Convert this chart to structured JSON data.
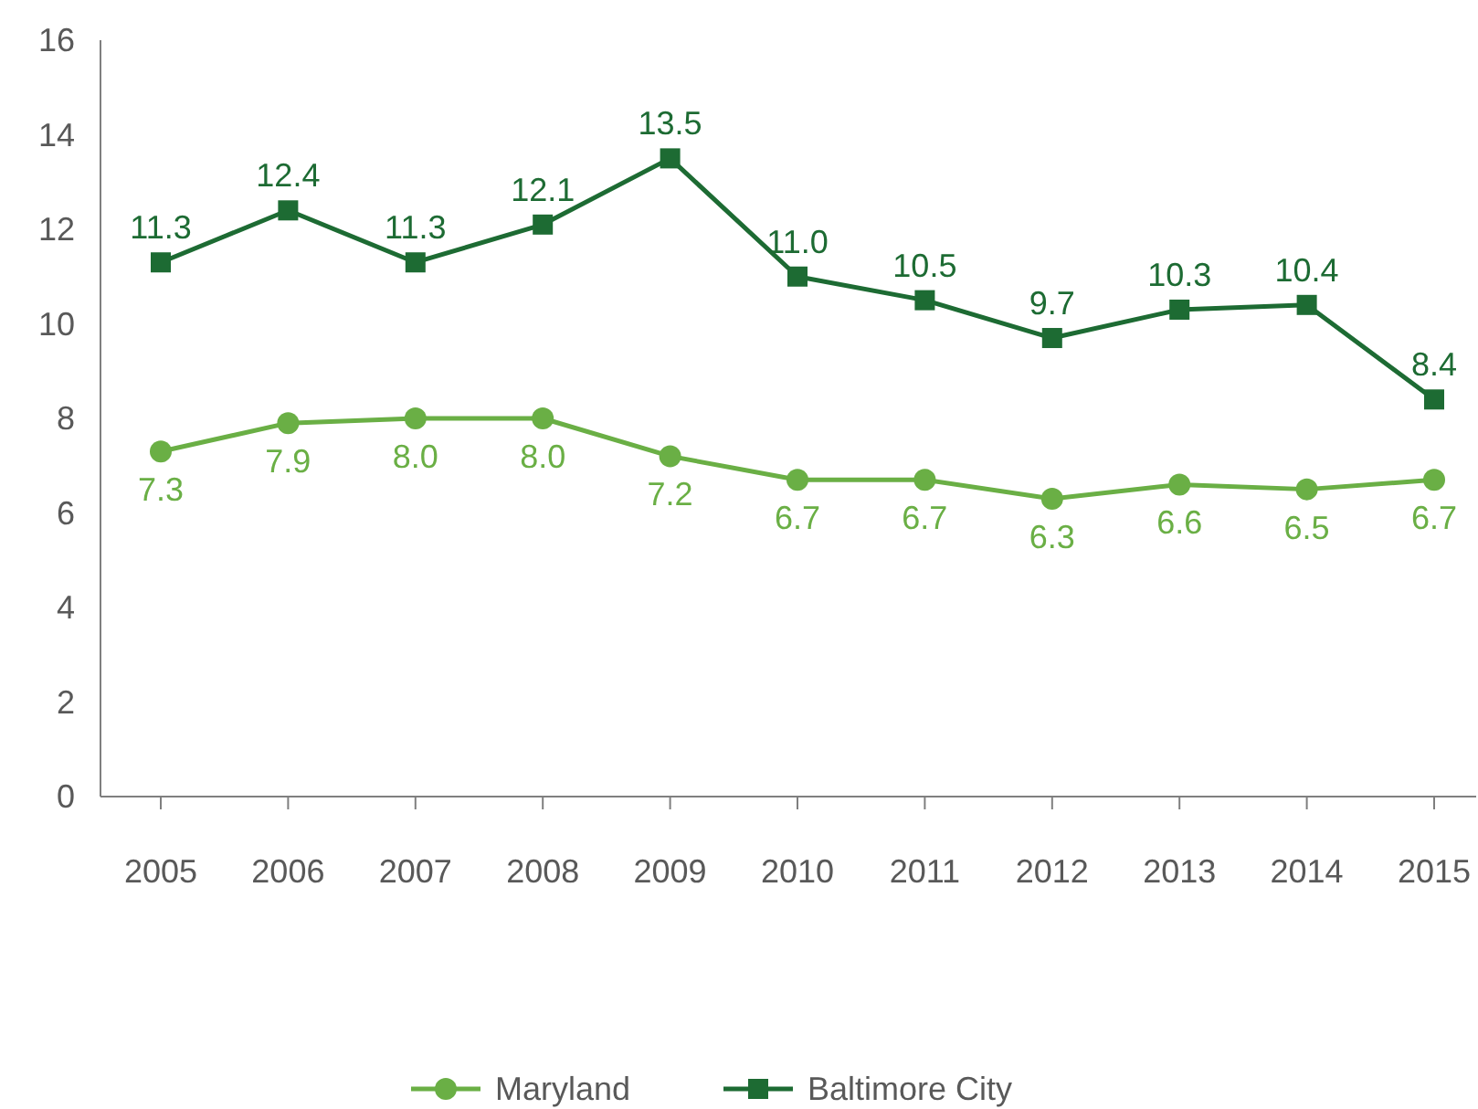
{
  "chart_data": {
    "type": "line",
    "categories": [
      "2005",
      "2006",
      "2007",
      "2008",
      "2009",
      "2010",
      "2011",
      "2012",
      "2013",
      "2014",
      "2015"
    ],
    "series": [
      {
        "name": "Maryland",
        "color": "#6aaf45",
        "marker": "circle",
        "values": [
          7.3,
          7.9,
          8.0,
          8.0,
          7.2,
          6.7,
          6.7,
          6.3,
          6.6,
          6.5,
          6.7
        ],
        "value_labels": [
          "7.3",
          "7.9",
          "8.0",
          "8.0",
          "7.2",
          "6.7",
          "6.7",
          "6.3",
          "6.6",
          "6.5",
          "6.7"
        ]
      },
      {
        "name": "Baltimore City",
        "color": "#1d6b33",
        "marker": "square",
        "values": [
          11.3,
          12.4,
          11.3,
          12.1,
          13.5,
          11.0,
          10.5,
          9.7,
          10.3,
          10.4,
          8.4
        ],
        "value_labels": [
          "11.3",
          "12.4",
          "11.3",
          "12.1",
          "13.5",
          "11.0",
          "10.5",
          "9.7",
          "10.3",
          "10.4",
          "8.4"
        ]
      }
    ],
    "ylim": [
      0,
      16
    ],
    "yticks": [
      0,
      2,
      4,
      6,
      8,
      10,
      12,
      14,
      16
    ],
    "grid": false,
    "legend": "bottom"
  }
}
